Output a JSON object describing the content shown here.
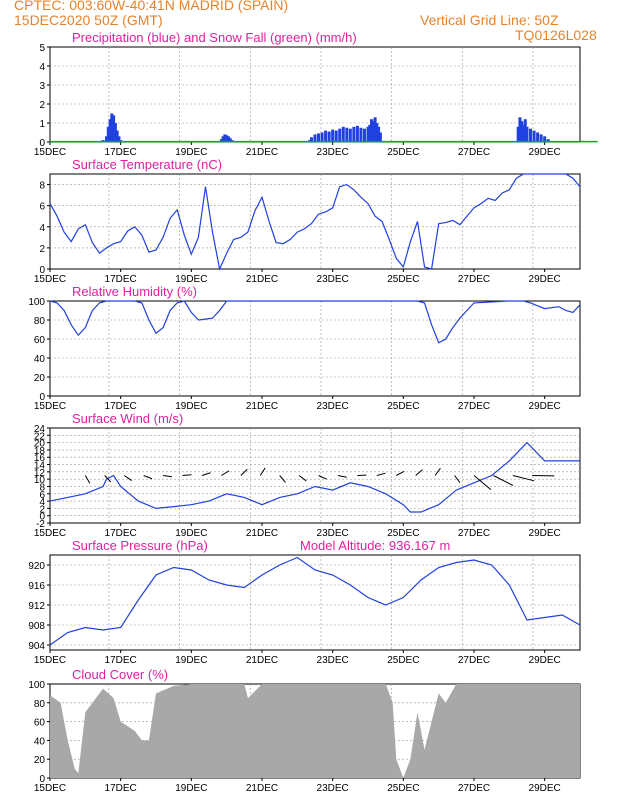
{
  "header": {
    "line1_left": "CPTEC:   003:60W-40:41N   MADRID (SPAIN)",
    "line2_left": "15DEC2020 50Z (GMT)",
    "line2_right": "Vertical Grid Line: 50Z",
    "line3_right": "TQ0126L028"
  },
  "x_ticks": [
    "15DEC",
    "17DEC",
    "19DEC",
    "21DEC",
    "23DEC",
    "25DEC",
    "27DEC",
    "29DEC"
  ],
  "colors": {
    "title": "#e020a0",
    "header": "#e8832a",
    "line": "#2040e0",
    "snow": "#20a020",
    "cloud": "#a8a8a8",
    "axis": "#000000"
  },
  "panels": [
    {
      "id": "precip",
      "title": "Precipitation (blue) and Snow Fall (green) (mm/h)",
      "yticks": [
        "0",
        "1",
        "2",
        "3",
        "4",
        "5"
      ],
      "ylim": [
        0,
        5
      ]
    },
    {
      "id": "temp",
      "title": "Surface Temperature (nC)",
      "yticks": [
        "0",
        "2",
        "4",
        "6",
        "8"
      ],
      "ylim": [
        0,
        9
      ]
    },
    {
      "id": "rh",
      "title": "Relative Humidity (%)",
      "yticks": [
        "0",
        "20",
        "40",
        "60",
        "80",
        "100"
      ],
      "ylim": [
        0,
        100
      ]
    },
    {
      "id": "wind",
      "title": "Surface Wind (m/s)",
      "yticks": [
        "-2",
        "0",
        "2",
        "4",
        "6",
        "8",
        "10",
        "12",
        "14",
        "16",
        "18",
        "20",
        "22",
        "24"
      ],
      "ylim": [
        -2,
        24
      ]
    },
    {
      "id": "pres",
      "title": "Surface Pressure (hPa)",
      "extra": "Model Altitude: 936.167 m",
      "yticks": [
        "904",
        "908",
        "912",
        "916",
        "920"
      ],
      "ylim": [
        903,
        922
      ]
    },
    {
      "id": "cloud",
      "title": "Cloud Cover (%)",
      "yticks": [
        "0",
        "20",
        "40",
        "60",
        "80",
        "100"
      ],
      "ylim": [
        0,
        100
      ]
    }
  ],
  "chart_data": [
    {
      "type": "bar",
      "title": "Precipitation (blue) and Snow Fall (green) (mm/h)",
      "x_unit": "days since 15DEC 00Z",
      "series": [
        {
          "name": "Precipitation",
          "x": [
            1.5,
            1.6,
            1.65,
            1.7,
            1.75,
            1.8,
            1.85,
            1.9,
            1.95,
            2.0,
            4.85,
            4.9,
            4.95,
            5.0,
            5.05,
            5.1,
            5.15,
            7.35,
            7.4,
            7.5,
            7.6,
            7.7,
            7.8,
            7.9,
            8.0,
            8.1,
            8.2,
            8.3,
            8.4,
            8.5,
            8.6,
            8.7,
            8.8,
            8.9,
            9.0,
            9.05,
            9.1,
            9.15,
            9.2,
            9.25,
            9.3,
            9.35,
            13.25,
            13.3,
            13.35,
            13.4,
            13.45,
            13.5,
            13.6,
            13.7,
            13.8,
            13.9,
            14.0,
            14.1
          ],
          "values": [
            0.1,
            0.3,
            0.8,
            1.2,
            1.5,
            1.4,
            1.0,
            0.6,
            0.3,
            0.1,
            0.15,
            0.3,
            0.4,
            0.35,
            0.3,
            0.2,
            0.1,
            0.1,
            0.25,
            0.4,
            0.45,
            0.5,
            0.6,
            0.55,
            0.65,
            0.6,
            0.7,
            0.8,
            0.75,
            0.7,
            0.8,
            0.85,
            0.75,
            0.7,
            0.8,
            0.9,
            1.2,
            1.1,
            1.3,
            1.0,
            0.8,
            0.5,
            0.8,
            1.3,
            1.1,
            0.9,
            1.2,
            0.8,
            0.7,
            0.6,
            0.5,
            0.4,
            0.3,
            0.15
          ]
        },
        {
          "name": "Snow Fall",
          "x": [
            0,
            15.5
          ],
          "values": [
            0.02,
            0.02
          ]
        }
      ],
      "ylim": [
        0,
        5
      ]
    },
    {
      "type": "line",
      "title": "Surface Temperature (nC)",
      "x": [
        0,
        0.2,
        0.4,
        0.6,
        0.8,
        1.0,
        1.2,
        1.4,
        1.6,
        1.8,
        2.0,
        2.2,
        2.4,
        2.6,
        2.8,
        3.0,
        3.2,
        3.4,
        3.6,
        3.8,
        4.0,
        4.2,
        4.4,
        4.6,
        4.8,
        5.0,
        5.2,
        5.4,
        5.6,
        5.8,
        6.0,
        6.2,
        6.4,
        6.6,
        6.8,
        7.0,
        7.2,
        7.4,
        7.6,
        7.8,
        8.0,
        8.2,
        8.4,
        8.6,
        8.8,
        9.0,
        9.2,
        9.4,
        9.6,
        9.8,
        10.0,
        10.2,
        10.4,
        10.6,
        10.8,
        11.0,
        11.2,
        11.4,
        11.6,
        11.8,
        12.0,
        12.2,
        12.4,
        12.6,
        12.8,
        13.0,
        13.2,
        13.4,
        13.6,
        13.8,
        14.0,
        14.2,
        14.4,
        14.6,
        14.8,
        15.0
      ],
      "values": [
        6.2,
        5.0,
        3.5,
        2.6,
        3.8,
        4.2,
        2.5,
        1.5,
        2.0,
        2.4,
        2.6,
        3.6,
        4.0,
        3.2,
        1.6,
        1.8,
        3.0,
        4.8,
        5.6,
        3.2,
        1.4,
        3.0,
        7.8,
        3.5,
        0.0,
        1.5,
        2.8,
        3.0,
        3.5,
        5.5,
        6.8,
        4.5,
        2.5,
        2.4,
        2.8,
        3.5,
        3.8,
        4.3,
        5.2,
        5.4,
        5.8,
        7.8,
        8.0,
        7.5,
        6.8,
        6.2,
        5.0,
        4.5,
        2.8,
        1.0,
        0.2,
        2.6,
        4.5,
        0.2,
        0.0,
        4.3,
        4.4,
        4.6,
        4.2,
        5.0,
        5.8,
        6.2,
        6.7,
        6.5,
        7.2,
        7.5,
        8.6,
        9.0,
        9.0,
        9.0,
        9.0,
        9.0,
        9.0,
        9.0,
        8.6,
        7.8
      ],
      "ylim": [
        0,
        9
      ]
    },
    {
      "type": "line",
      "title": "Relative Humidity (%)",
      "x": [
        0,
        0.2,
        0.4,
        0.6,
        0.8,
        1.0,
        1.2,
        1.4,
        1.6,
        2.0,
        2.4,
        2.6,
        2.8,
        3.0,
        3.2,
        3.4,
        3.6,
        3.8,
        4.0,
        4.2,
        4.4,
        4.6,
        4.8,
        5.0,
        6.0,
        7.0,
        8.0,
        9.0,
        10.0,
        10.4,
        10.6,
        10.8,
        11.0,
        11.2,
        11.4,
        11.6,
        12.0,
        13.0,
        13.4,
        13.6,
        13.8,
        14.0,
        14.4,
        14.6,
        14.8,
        15.0
      ],
      "values": [
        100,
        98,
        90,
        75,
        64,
        72,
        90,
        98,
        100,
        100,
        100,
        98,
        80,
        66,
        72,
        90,
        98,
        100,
        88,
        80,
        81,
        82,
        90,
        100,
        100,
        100,
        100,
        100,
        100,
        100,
        98,
        75,
        56,
        60,
        72,
        82,
        98,
        100,
        100,
        98,
        95,
        92,
        94,
        90,
        88,
        96
      ],
      "ylim": [
        0,
        100
      ]
    },
    {
      "type": "line",
      "title": "Surface Wind (m/s)",
      "x": [
        0,
        0.5,
        1.0,
        1.5,
        1.6,
        1.8,
        2.0,
        2.5,
        3.0,
        3.5,
        4.0,
        4.5,
        5.0,
        5.5,
        6.0,
        6.5,
        7.0,
        7.5,
        8.0,
        8.5,
        9.0,
        9.5,
        10.0,
        10.2,
        10.5,
        11.0,
        11.5,
        12.0,
        12.5,
        13.0,
        13.3,
        13.5,
        13.8,
        14.0,
        14.5,
        15.0
      ],
      "values": [
        4,
        5,
        6,
        8,
        10,
        11,
        8,
        4,
        2,
        2.5,
        3,
        4,
        6,
        5,
        3,
        5,
        6,
        8,
        7,
        9,
        8,
        6,
        3,
        1,
        1,
        3,
        7,
        9,
        11,
        15,
        18,
        20,
        17,
        15,
        15,
        15
      ],
      "ylim": [
        -2,
        24
      ]
    },
    {
      "type": "line",
      "title": "Surface Pressure (hPa)",
      "x": [
        0,
        0.5,
        1.0,
        1.5,
        2.0,
        2.5,
        3.0,
        3.5,
        4.0,
        4.5,
        5.0,
        5.5,
        6.0,
        6.5,
        7.0,
        7.5,
        8.0,
        8.5,
        9.0,
        9.5,
        10.0,
        10.5,
        11.0,
        11.5,
        12.0,
        12.5,
        13.0,
        13.5,
        14.0,
        14.5,
        15.0
      ],
      "values": [
        904,
        906.5,
        907.5,
        907,
        907.5,
        913,
        918,
        919.5,
        919,
        917,
        916,
        915.5,
        918,
        920,
        921.5,
        919,
        918,
        916,
        913.5,
        912,
        913.5,
        917,
        919.5,
        920.5,
        921,
        920,
        916,
        909,
        909.5,
        910,
        908
      ],
      "ylim": [
        903,
        922
      ]
    },
    {
      "type": "area",
      "title": "Cloud Cover (%)",
      "x": [
        0,
        0.3,
        0.5,
        0.7,
        0.8,
        1.0,
        1.5,
        1.8,
        2.0,
        2.4,
        2.6,
        2.8,
        3.0,
        3.5,
        4.0,
        5.5,
        5.6,
        6.0,
        7.0,
        8.0,
        9.0,
        9.5,
        9.7,
        9.8,
        10.0,
        10.2,
        10.4,
        10.6,
        10.8,
        11.0,
        11.2,
        11.5,
        12.0,
        14.0,
        15.0
      ],
      "values": [
        88,
        80,
        40,
        10,
        5,
        70,
        95,
        85,
        60,
        50,
        40,
        40,
        90,
        98,
        100,
        100,
        85,
        100,
        100,
        100,
        100,
        100,
        80,
        20,
        0,
        20,
        70,
        30,
        60,
        90,
        80,
        100,
        100,
        100,
        100
      ],
      "ylim": [
        0,
        100
      ]
    }
  ]
}
